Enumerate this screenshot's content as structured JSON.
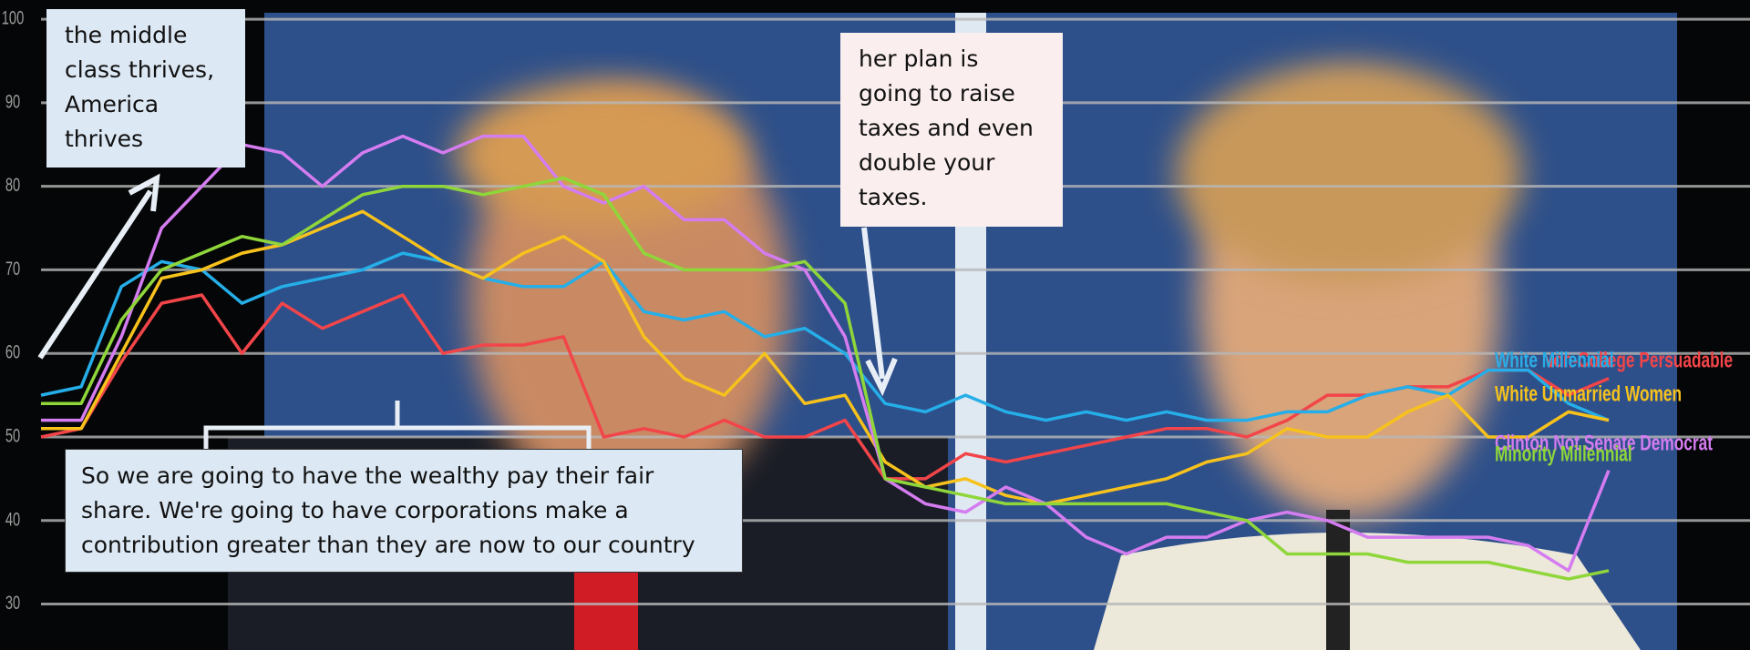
{
  "chart_data": {
    "type": "line",
    "ylim": [
      24.5,
      102.3
    ],
    "yticks": [
      30,
      40,
      50,
      60,
      70,
      80,
      90,
      100
    ],
    "grid": true,
    "series": [
      {
        "name": "White Non-College Persuadable",
        "color": "#f2454a",
        "values": [
          50,
          51,
          59,
          66,
          67,
          60,
          66,
          63,
          65,
          67,
          60,
          61,
          61,
          62,
          50,
          51,
          50,
          52,
          50,
          50,
          52,
          45,
          45,
          48,
          47,
          48,
          49,
          50,
          51,
          51,
          50,
          52,
          55,
          55,
          56,
          56,
          58,
          58,
          55,
          57
        ]
      },
      {
        "name": "White Millennial",
        "color": "#25aee8",
        "values": [
          55,
          56,
          68,
          71,
          70,
          66,
          68,
          69,
          70,
          72,
          71,
          69,
          68,
          68,
          71,
          65,
          64,
          65,
          62,
          63,
          60,
          54,
          53,
          55,
          53,
          52,
          53,
          52,
          53,
          52,
          52,
          53,
          53,
          55,
          56,
          55,
          58,
          58,
          54,
          52
        ]
      },
      {
        "name": "White Unmarried Women",
        "color": "#f7c21c",
        "values": [
          51,
          51,
          60,
          69,
          70,
          72,
          73,
          75,
          77,
          74,
          71,
          69,
          72,
          74,
          71,
          62,
          57,
          55,
          60,
          54,
          55,
          47,
          44,
          45,
          43,
          42,
          43,
          44,
          45,
          47,
          48,
          51,
          50,
          50,
          53,
          55,
          50,
          50,
          53,
          52
        ]
      },
      {
        "name": "Clinton Not Senate Democrat",
        "color": "#d47cf0",
        "values": [
          52,
          52,
          62,
          75,
          80,
          85,
          84,
          80,
          84,
          86,
          84,
          86,
          86,
          80,
          78,
          80,
          76,
          76,
          72,
          70,
          62,
          45,
          42,
          41,
          44,
          42,
          38,
          36,
          38,
          38,
          40,
          41,
          40,
          38,
          38,
          38,
          38,
          37,
          34,
          46
        ]
      },
      {
        "name": "Minority Millennial",
        "color": "#8fd63a",
        "values": [
          54,
          54,
          64,
          70,
          72,
          74,
          73,
          76,
          79,
          80,
          80,
          79,
          80,
          81,
          79,
          72,
          70,
          70,
          70,
          71,
          66,
          45,
          44,
          43,
          42,
          42,
          42,
          42,
          42,
          41,
          40,
          36,
          36,
          36,
          35,
          35,
          35,
          34,
          33,
          34
        ]
      }
    ],
    "annotations": [
      "the middle class thrives, America thrives",
      "her plan is going to raise taxes and even double your taxes.",
      "So we are going to have the wealthy pay their fair share. We're going to have corporations make a contribution greater than they are now to our country"
    ]
  }
}
